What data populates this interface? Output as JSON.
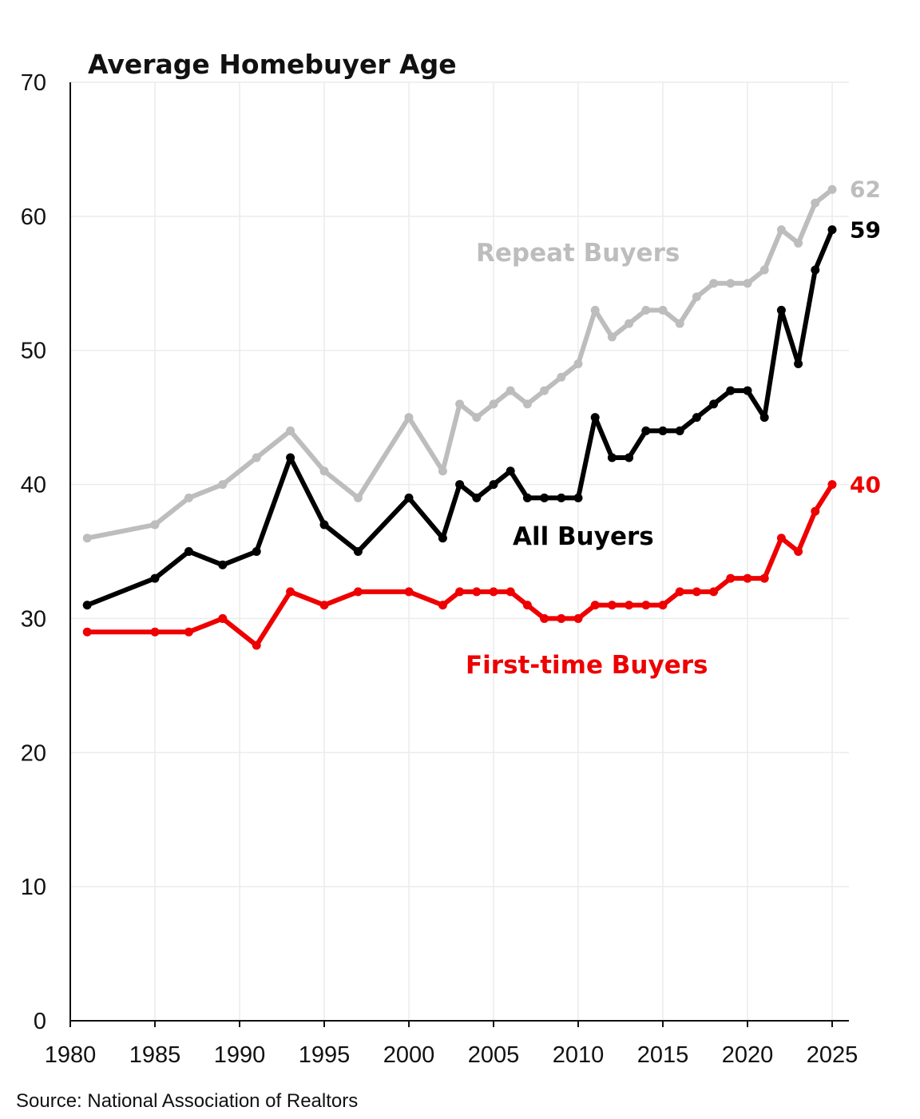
{
  "chart_data": {
    "type": "line",
    "title": "Average Homebuyer Age",
    "xlabel": "",
    "ylabel": "",
    "xlim": [
      1980,
      2025
    ],
    "ylim": [
      0,
      70
    ],
    "x_ticks": [
      1980,
      1985,
      1990,
      1995,
      2000,
      2005,
      2010,
      2015,
      2020,
      2025
    ],
    "y_ticks": [
      0,
      10,
      20,
      30,
      40,
      50,
      60,
      70
    ],
    "grid": true,
    "legend": "inline labels",
    "source": "Source: National Association of Realtors",
    "series": [
      {
        "name": "Repeat Buyers",
        "color": "#bdbdbd",
        "end_label": "62",
        "points": [
          [
            1981,
            36
          ],
          [
            1985,
            37
          ],
          [
            1987,
            39
          ],
          [
            1989,
            40
          ],
          [
            1991,
            42
          ],
          [
            1993,
            44
          ],
          [
            1995,
            41
          ],
          [
            1997,
            39
          ],
          [
            2000,
            45
          ],
          [
            2002,
            41
          ],
          [
            2003,
            46
          ],
          [
            2004,
            45
          ],
          [
            2005,
            46
          ],
          [
            2006,
            47
          ],
          [
            2007,
            46
          ],
          [
            2008,
            47
          ],
          [
            2009,
            48
          ],
          [
            2010,
            49
          ],
          [
            2011,
            53
          ],
          [
            2012,
            51
          ],
          [
            2013,
            52
          ],
          [
            2014,
            53
          ],
          [
            2015,
            53
          ],
          [
            2016,
            52
          ],
          [
            2017,
            54
          ],
          [
            2018,
            55
          ],
          [
            2019,
            55
          ],
          [
            2020,
            55
          ],
          [
            2021,
            56
          ],
          [
            2022,
            59
          ],
          [
            2023,
            58
          ],
          [
            2024,
            61
          ],
          [
            2025,
            62
          ]
        ]
      },
      {
        "name": "All Buyers",
        "color": "#000000",
        "end_label": "59",
        "points": [
          [
            1981,
            31
          ],
          [
            1985,
            33
          ],
          [
            1987,
            35
          ],
          [
            1989,
            34
          ],
          [
            1991,
            35
          ],
          [
            1993,
            42
          ],
          [
            1995,
            37
          ],
          [
            1997,
            35
          ],
          [
            2000,
            39
          ],
          [
            2002,
            36
          ],
          [
            2003,
            40
          ],
          [
            2004,
            39
          ],
          [
            2005,
            40
          ],
          [
            2006,
            41
          ],
          [
            2007,
            39
          ],
          [
            2008,
            39
          ],
          [
            2009,
            39
          ],
          [
            2010,
            39
          ],
          [
            2011,
            45
          ],
          [
            2012,
            42
          ],
          [
            2013,
            42
          ],
          [
            2014,
            44
          ],
          [
            2015,
            44
          ],
          [
            2016,
            44
          ],
          [
            2017,
            45
          ],
          [
            2018,
            46
          ],
          [
            2019,
            47
          ],
          [
            2020,
            47
          ],
          [
            2021,
            45
          ],
          [
            2022,
            53
          ],
          [
            2023,
            49
          ],
          [
            2024,
            56
          ],
          [
            2025,
            59
          ]
        ]
      },
      {
        "name": "First-time Buyers",
        "color": "#ee0000",
        "end_label": "40",
        "points": [
          [
            1981,
            29
          ],
          [
            1985,
            29
          ],
          [
            1987,
            29
          ],
          [
            1989,
            30
          ],
          [
            1991,
            28
          ],
          [
            1993,
            32
          ],
          [
            1995,
            31
          ],
          [
            1997,
            32
          ],
          [
            2000,
            32
          ],
          [
            2002,
            31
          ],
          [
            2003,
            32
          ],
          [
            2004,
            32
          ],
          [
            2005,
            32
          ],
          [
            2006,
            32
          ],
          [
            2007,
            31
          ],
          [
            2008,
            30
          ],
          [
            2009,
            30
          ],
          [
            2010,
            30
          ],
          [
            2011,
            31
          ],
          [
            2012,
            31
          ],
          [
            2013,
            31
          ],
          [
            2014,
            31
          ],
          [
            2015,
            31
          ],
          [
            2016,
            32
          ],
          [
            2017,
            32
          ],
          [
            2018,
            32
          ],
          [
            2019,
            33
          ],
          [
            2020,
            33
          ],
          [
            2021,
            33
          ],
          [
            2022,
            36
          ],
          [
            2023,
            35
          ],
          [
            2024,
            38
          ],
          [
            2025,
            40
          ]
        ]
      }
    ]
  }
}
